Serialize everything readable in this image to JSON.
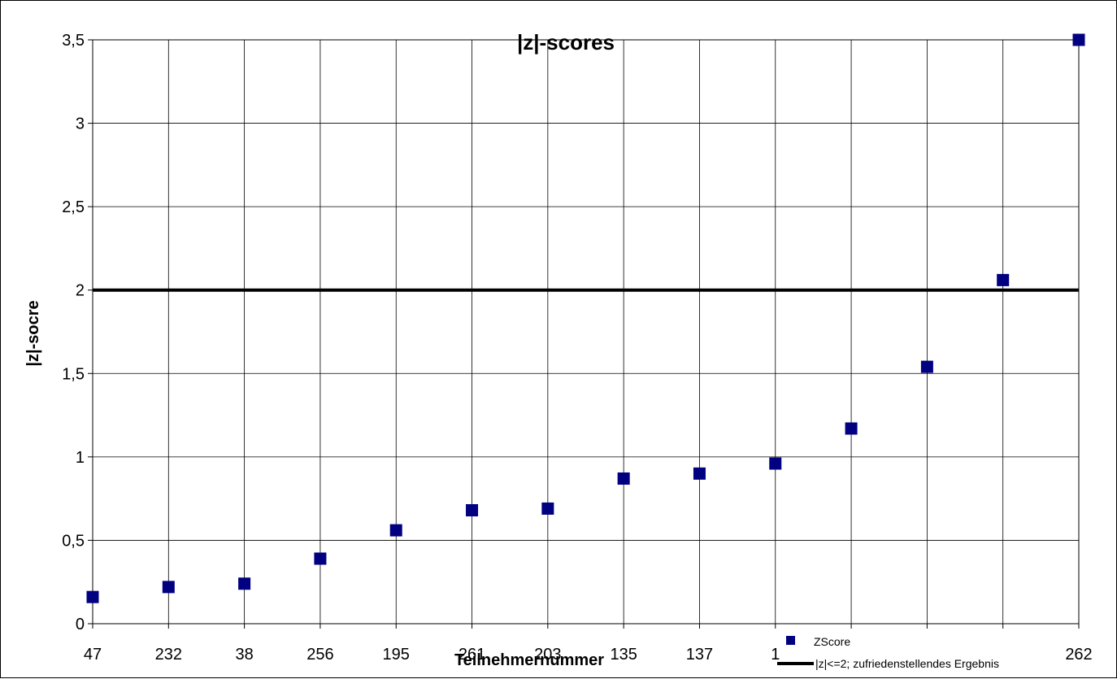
{
  "chart_data": {
    "type": "scatter",
    "title": "|z|-scores",
    "xlabel": "Teilnehmernummer",
    "ylabel": "|z|-socre",
    "categories": [
      "47",
      "232",
      "38",
      "256",
      "195",
      "261",
      "203",
      "135",
      "137",
      "1",
      "",
      "",
      "",
      "262"
    ],
    "ylim": [
      0,
      3.5
    ],
    "y_ticks": [
      "0",
      "0,5",
      "1",
      "1,5",
      "2",
      "2,5",
      "3",
      "3,5"
    ],
    "series": [
      {
        "name": "ZScore",
        "color": "#000080",
        "marker": "square",
        "values": [
          0.16,
          0.22,
          0.24,
          0.39,
          0.56,
          0.68,
          0.69,
          0.87,
          0.9,
          0.96,
          1.17,
          1.54,
          2.06,
          3.5
        ]
      }
    ],
    "reference_line": {
      "name": "|z|<=2; zufriedenstellendes Ergebnis",
      "value": 2,
      "color": "#000000"
    },
    "grid": true,
    "legend_position": "bottom-right"
  }
}
